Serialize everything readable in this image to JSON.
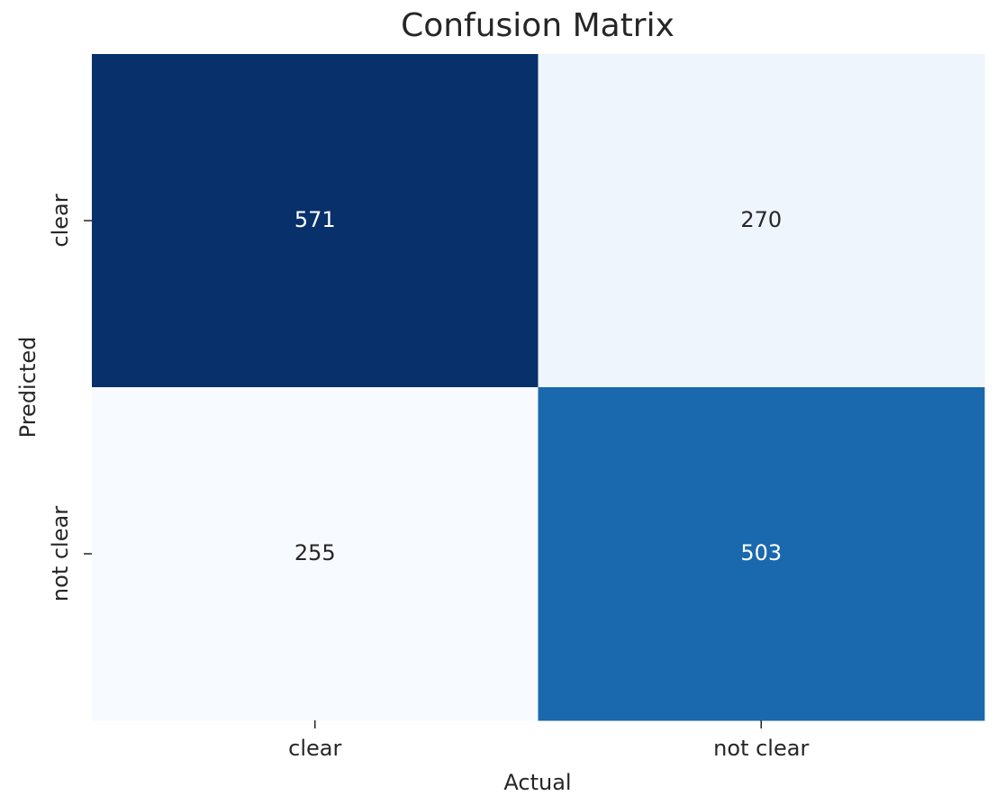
{
  "chart_data": {
    "type": "heatmap",
    "title": "Confusion Matrix",
    "xlabel": "Actual",
    "ylabel": "Predicted",
    "x_categories": [
      "clear",
      "not clear"
    ],
    "y_categories": [
      "clear",
      "not clear"
    ],
    "values": [
      [
        571,
        270
      ],
      [
        255,
        503
      ]
    ],
    "colormap": "Blues"
  }
}
